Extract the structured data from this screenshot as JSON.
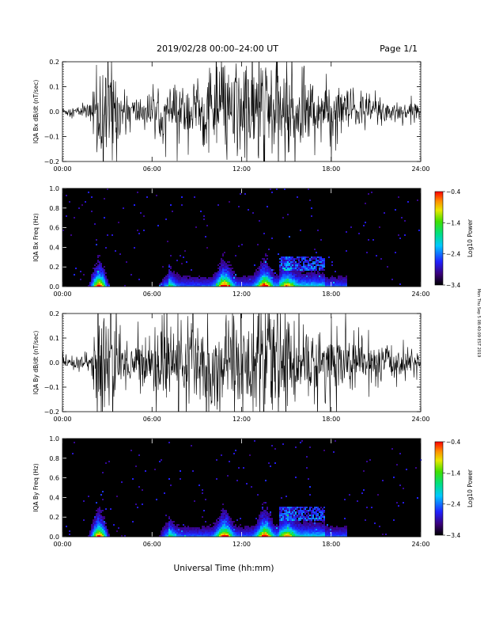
{
  "header": {
    "title": "2019/02/28   00:00–24:00 UT",
    "page": "Page 1/1"
  },
  "xlabel": "Universal Time (hh:mm)",
  "side_note": "Mon Thu Sep 5 08:40:09 EST 2019",
  "chart_data": [
    {
      "type": "line",
      "id": "bx-waveform",
      "ylabel": "IQA Bx dB/dt (nT/sec)",
      "xlim": [
        0,
        24
      ],
      "ylim": [
        -0.2,
        0.2
      ],
      "xticks": [
        "00:00",
        "06:00",
        "12:00",
        "18:00",
        "24:00"
      ],
      "yticks": [
        "−0.2",
        "−0.1",
        "0.0",
        "0.1",
        "0.2"
      ],
      "envelope": {
        "x": [
          0,
          1,
          2,
          2.15,
          2.5,
          3,
          3.4,
          4,
          5,
          6,
          7,
          8,
          9,
          10,
          10.8,
          11,
          11.2,
          11.5,
          12,
          13,
          13.5,
          14,
          15,
          16,
          17,
          18,
          19,
          20,
          21,
          22,
          23,
          24
        ],
        "amp": [
          0.02,
          0.025,
          0.04,
          0.25,
          0.25,
          0.25,
          0.25,
          0.08,
          0.07,
          0.08,
          0.11,
          0.12,
          0.15,
          0.17,
          0.22,
          0.25,
          0.12,
          0.25,
          0.25,
          0.25,
          0.25,
          0.25,
          0.2,
          0.16,
          0.14,
          0.12,
          0.11,
          0.09,
          0.08,
          0.06,
          0.04,
          0.03
        ]
      }
    },
    {
      "type": "heatmap",
      "id": "bx-spectrogram",
      "ylabel": "IQA Bx Freq (Hz)",
      "xlim": [
        0,
        24
      ],
      "ylim": [
        0,
        1.0
      ],
      "xticks": [
        "00:00",
        "06:00",
        "12:00",
        "18:00",
        "24:00"
      ],
      "yticks": [
        "0.0",
        "0.2",
        "0.4",
        "0.6",
        "0.8",
        "1.0"
      ],
      "colorbar": {
        "label": "Log10 Power",
        "ticks": [
          "−0.4",
          "−1.4",
          "−2.4",
          "−3.4"
        ],
        "range": [
          -3.4,
          -0.4
        ]
      }
    },
    {
      "type": "line",
      "id": "by-waveform",
      "ylabel": "IQA By dB/dt (nT/sec)",
      "xlim": [
        0,
        24
      ],
      "ylim": [
        -0.2,
        0.2
      ],
      "xticks": [
        "00:00",
        "06:00",
        "12:00",
        "18:00",
        "24:00"
      ],
      "yticks": [
        "−0.2",
        "−0.1",
        "0.0",
        "0.1",
        "0.2"
      ],
      "envelope": {
        "x": [
          0,
          1,
          2,
          2.15,
          2.5,
          3,
          3.4,
          4,
          5,
          6,
          7,
          8,
          9,
          10,
          10.8,
          11,
          11.2,
          11.5,
          12,
          13,
          13.5,
          14,
          15,
          16,
          17,
          18,
          19,
          20,
          21,
          22,
          23,
          24
        ],
        "amp": [
          0.03,
          0.035,
          0.05,
          0.25,
          0.25,
          0.25,
          0.25,
          0.12,
          0.1,
          0.12,
          0.18,
          0.17,
          0.2,
          0.22,
          0.25,
          0.25,
          0.16,
          0.25,
          0.25,
          0.25,
          0.25,
          0.25,
          0.22,
          0.18,
          0.16,
          0.15,
          0.13,
          0.11,
          0.1,
          0.08,
          0.06,
          0.05
        ]
      }
    },
    {
      "type": "heatmap",
      "id": "by-spectrogram",
      "ylabel": "IQA By Freq (Hz)",
      "xlim": [
        0,
        24
      ],
      "ylim": [
        0,
        1.0
      ],
      "xticks": [
        "00:00",
        "06:00",
        "12:00",
        "18:00",
        "24:00"
      ],
      "yticks": [
        "0.0",
        "0.2",
        "0.4",
        "0.6",
        "0.8",
        "1.0"
      ],
      "colorbar": {
        "label": "Log10 Power",
        "ticks": [
          "−0.4",
          "−1.4",
          "−2.4",
          "−3.4"
        ],
        "range": [
          -3.4,
          -0.4
        ]
      }
    }
  ]
}
